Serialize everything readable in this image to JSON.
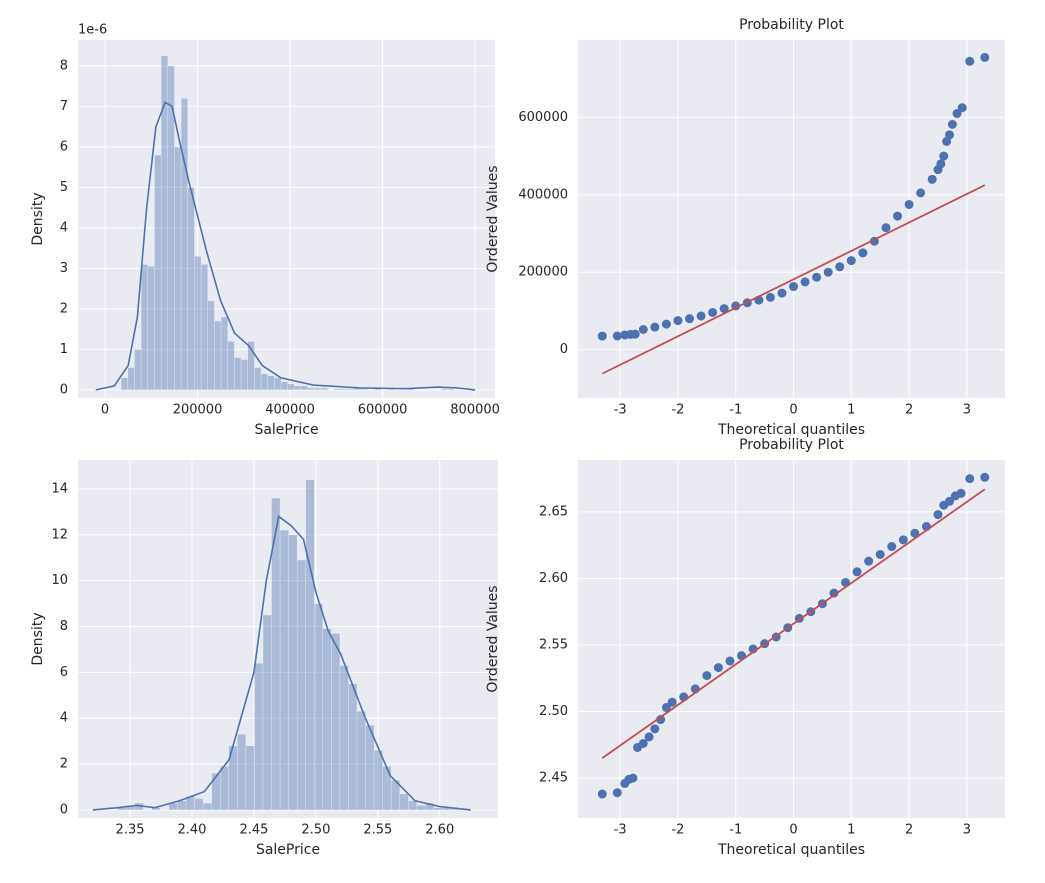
{
  "chart_data": [
    {
      "type": "histogram",
      "xlabel": "SalePrice",
      "ylabel": "Density",
      "y_offset_label": "1e-6",
      "bins": [
        34900,
        49302,
        63704,
        78106,
        92508,
        106910,
        121312,
        135714,
        150116,
        164518,
        178920,
        193322,
        207724,
        222126,
        236528,
        250930,
        265332,
        279734,
        294136,
        308538,
        322940,
        337342,
        351744,
        366146,
        380548,
        394950,
        409352,
        423754,
        438156,
        452558,
        466960,
        481362,
        495764,
        510166,
        524568,
        538970,
        553372,
        567774,
        582176,
        596578,
        610980,
        625382,
        639784,
        654186,
        668588,
        682990,
        697392,
        711794,
        726196,
        740598,
        755000
      ],
      "counts": [
        0.3,
        0.55,
        1.0,
        3.1,
        3.05,
        5.8,
        8.25,
        8.0,
        6.0,
        7.2,
        5.0,
        3.3,
        3.1,
        2.2,
        1.7,
        1.8,
        1.2,
        0.8,
        0.75,
        1.2,
        0.55,
        0.4,
        0.35,
        0.3,
        0.2,
        0.15,
        0.1,
        0.1,
        0.05,
        0.05,
        0.05,
        0,
        0.03,
        0.03,
        0.03,
        0.05,
        0.03,
        0,
        0.03,
        0,
        0.03,
        0,
        0,
        0.03,
        0,
        0,
        0,
        0,
        0.03,
        0.03
      ],
      "color": "#4c72b0",
      "kde": {
        "x": [
          -20000,
          20000,
          50000,
          70000,
          90000,
          110000,
          130000,
          145000,
          160000,
          180000,
          200000,
          220000,
          250000,
          280000,
          310000,
          340000,
          380000,
          450000,
          550000,
          650000,
          720000,
          760000,
          800000
        ],
        "values": [
          0,
          0.1,
          0.6,
          1.8,
          4.5,
          6.5,
          7.1,
          7.0,
          6.2,
          5.2,
          4.3,
          3.4,
          2.2,
          1.4,
          1.1,
          0.6,
          0.3,
          0.12,
          0.05,
          0.03,
          0.07,
          0.05,
          0
        ],
        "color": "#4c72b0"
      },
      "xlim": [
        -58400,
        843000
      ],
      "ylim": [
        -0.2,
        8.64
      ],
      "xticks": [
        0,
        200000,
        400000,
        600000,
        800000
      ],
      "yticks": [
        0,
        1,
        2,
        3,
        4,
        5,
        6,
        7,
        8
      ],
      "grid": true
    },
    {
      "type": "scatter",
      "title": "Probability Plot",
      "xlabel": "Theoretical quantiles",
      "ylabel": "Ordered Values",
      "x": [
        -3.31,
        -3.05,
        -2.92,
        -2.82,
        -2.74,
        -2.6,
        -2.4,
        -2.2,
        -2.0,
        -1.8,
        -1.6,
        -1.4,
        -1.2,
        -1.0,
        -0.8,
        -0.6,
        -0.4,
        -0.2,
        0,
        0.2,
        0.4,
        0.6,
        0.8,
        1.0,
        1.2,
        1.4,
        1.6,
        1.8,
        2.0,
        2.2,
        2.4,
        2.5,
        2.55,
        2.6,
        2.65,
        2.7,
        2.75,
        2.83,
        2.92,
        3.05,
        3.31
      ],
      "values": [
        34900,
        35311,
        37900,
        39300,
        40000,
        52000,
        58000,
        66000,
        75000,
        80000,
        87000,
        96000,
        106000,
        113000,
        121000,
        128000,
        135000,
        146000,
        163000,
        175000,
        187000,
        200000,
        214000,
        230000,
        250000,
        280000,
        315000,
        345000,
        375000,
        405000,
        440000,
        465000,
        480000,
        500000,
        538000,
        555000,
        582000,
        610000,
        625000,
        745000,
        755000
      ],
      "color": "#4c72b0",
      "fit": {
        "x": [
          -3.31,
          3.31
        ],
        "values": [
          -62000,
          425000
        ],
        "color": "#c44e52"
      },
      "xlim": [
        -3.73,
        3.66
      ],
      "ylim": [
        -125000,
        800000
      ],
      "xticks": [
        -3,
        -2,
        -1,
        0,
        1,
        2,
        3
      ],
      "yticks": [
        0,
        200000,
        400000,
        600000
      ],
      "grid": true
    },
    {
      "type": "histogram",
      "xlabel": "SalePrice",
      "ylabel": "Density",
      "bins": [
        2.34,
        2.3469,
        2.3538,
        2.3607,
        2.3676,
        2.3745,
        2.3814,
        2.3883,
        2.3952,
        2.4021,
        2.409,
        2.4159,
        2.4228,
        2.4297,
        2.4366,
        2.4435,
        2.4504,
        2.4573,
        2.4642,
        2.4711,
        2.478,
        2.4849,
        2.4918,
        2.4987,
        2.5056,
        2.5125,
        2.5194,
        2.5263,
        2.5332,
        2.5401,
        2.547,
        2.5539,
        2.5608,
        2.5677,
        2.5746,
        2.5815,
        2.5884,
        2.5953,
        2.6022,
        2.6091,
        2.616
      ],
      "counts": [
        0.1,
        0.2,
        0.3,
        0,
        0.1,
        0,
        0.3,
        0.4,
        0.6,
        0.5,
        0.3,
        1.6,
        1.9,
        2.8,
        3.3,
        2.8,
        6.4,
        8.5,
        13.6,
        12.2,
        12.0,
        10.9,
        14.4,
        9.0,
        7.9,
        7.7,
        6.3,
        5.5,
        4.3,
        3.7,
        2.6,
        1.9,
        1.3,
        0.7,
        0.4,
        0.2,
        0.3,
        0.1,
        0.1,
        0.1
      ],
      "color": "#4c72b0",
      "kde": {
        "x": [
          2.32,
          2.34,
          2.355,
          2.37,
          2.39,
          2.41,
          2.43,
          2.45,
          2.46,
          2.47,
          2.48,
          2.49,
          2.5,
          2.51,
          2.52,
          2.54,
          2.56,
          2.58,
          2.6,
          2.625
        ],
        "values": [
          0,
          0.1,
          0.2,
          0.1,
          0.4,
          0.8,
          2.2,
          6.0,
          10.0,
          12.8,
          12.4,
          11.8,
          9.5,
          7.8,
          6.8,
          4.0,
          1.5,
          0.4,
          0.15,
          0
        ],
        "color": "#4c72b0"
      },
      "xlim": [
        2.308,
        2.647
      ],
      "ylim": [
        -0.35,
        15.26
      ],
      "xticks": [
        2.35,
        {
          "value": 2.4,
          "label": "2.40"
        },
        2.45,
        {
          "value": 2.5,
          "label": "2.50"
        },
        2.55,
        {
          "value": 2.6,
          "label": "2.60"
        }
      ],
      "yticks": [
        0,
        2,
        4,
        6,
        8,
        10,
        12,
        14
      ],
      "grid": true
    },
    {
      "type": "scatter",
      "title": "Probability Plot",
      "xlabel": "Theoretical quantiles",
      "ylabel": "Ordered Values",
      "x": [
        -3.31,
        -3.05,
        -2.92,
        -2.85,
        -2.78,
        -2.7,
        -2.6,
        -2.5,
        -2.4,
        -2.3,
        -2.2,
        -2.1,
        -1.9,
        -1.7,
        -1.5,
        -1.3,
        -1.1,
        -0.9,
        -0.7,
        -0.5,
        -0.3,
        -0.1,
        0.1,
        0.3,
        0.5,
        0.7,
        0.9,
        1.1,
        1.3,
        1.5,
        1.7,
        1.9,
        2.1,
        2.3,
        2.5,
        2.6,
        2.7,
        2.8,
        2.9,
        3.05,
        3.31
      ],
      "values": [
        2.438,
        2.439,
        2.446,
        2.449,
        2.45,
        2.473,
        2.476,
        2.481,
        2.487,
        2.494,
        2.503,
        2.507,
        2.511,
        2.517,
        2.527,
        2.533,
        2.538,
        2.542,
        2.547,
        2.551,
        2.556,
        2.563,
        2.57,
        2.575,
        2.581,
        2.589,
        2.597,
        2.605,
        2.613,
        2.618,
        2.624,
        2.629,
        2.634,
        2.639,
        2.648,
        2.655,
        2.658,
        2.662,
        2.664,
        2.675,
        2.676
      ],
      "color": "#4c72b0",
      "fit": {
        "x": [
          -3.31,
          3.31
        ],
        "values": [
          2.465,
          2.667
        ],
        "color": "#c44e52"
      },
      "xlim": [
        -3.73,
        3.66
      ],
      "ylim": [
        2.42,
        2.689
      ],
      "xticks": [
        -3,
        -2,
        -1,
        0,
        1,
        2,
        3
      ],
      "yticks": [
        2.45,
        {
          "value": 2.5,
          "label": "2.50"
        },
        2.55,
        {
          "value": 2.6,
          "label": "2.60"
        },
        2.65
      ],
      "grid": true
    }
  ]
}
